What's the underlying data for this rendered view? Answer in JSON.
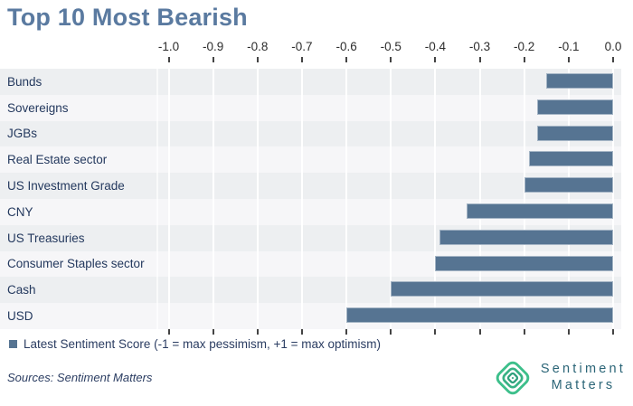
{
  "title": "Top 10 Most Bearish",
  "chart_data": {
    "type": "bar",
    "orientation": "horizontal",
    "title": "Top 10 Most Bearish",
    "series_name": "Latest Sentiment Score",
    "categories": [
      "Bunds",
      "Sovereigns",
      "JGBs",
      "Real Estate sector",
      "US Investment Grade",
      "CNY",
      "US Treasuries",
      "Consumer Staples sector",
      "Cash",
      "USD"
    ],
    "values": [
      -0.15,
      -0.17,
      -0.17,
      -0.19,
      -0.2,
      -0.33,
      -0.39,
      -0.4,
      -0.5,
      -0.6
    ],
    "axis_ticks": [
      "-1.0",
      "-0.9",
      "-0.8",
      "-0.7",
      "-0.6",
      "-0.5",
      "-0.4",
      "-0.3",
      "-0.2",
      "-0.1",
      "0.0"
    ],
    "xlim": [
      -1.05,
      0.02
    ],
    "xlabel": "",
    "ylabel": "",
    "grid": true,
    "legend_position": "bottom-left",
    "zebra_rows": true
  },
  "legend": {
    "label": "Latest Sentiment Score (-1 = max pessimism, +1 = max optimism)"
  },
  "footer": {
    "sources": "Sources: Sentiment Matters"
  },
  "logo": {
    "line1": "Sentiment",
    "line2": "Matters",
    "icon": "nested-diamonds-icon"
  },
  "colors": {
    "title_text": "#5a7aa0",
    "bar_fill": "#567492",
    "bar_border": "#a6b6c6",
    "band_odd": "#edeff1",
    "band_even": "#f6f6f8",
    "category_text": "#24395e",
    "axis_text": "#2d2d2d",
    "legend_text": "#2b3d62",
    "logo_green": "#3dbf8b",
    "logo_text": "#2b6577"
  }
}
